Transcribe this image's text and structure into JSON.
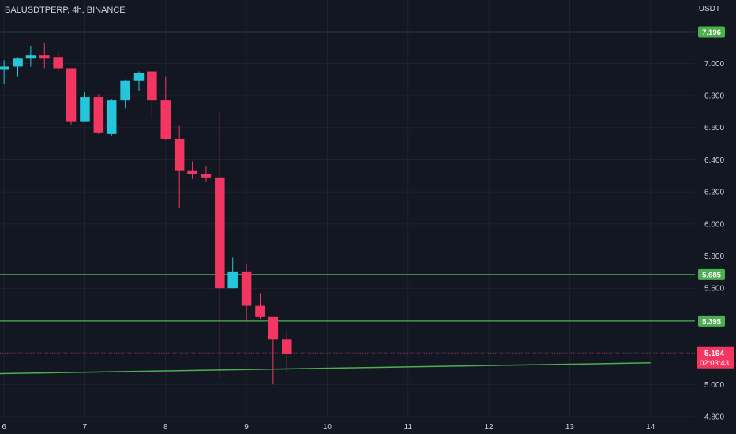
{
  "chart_data": {
    "type": "candlestick",
    "title": "BALUSDTPERP, 4h, BINANCE",
    "y_unit": "USDT",
    "y_ticks": [
      "7.000",
      "6.800",
      "6.600",
      "6.400",
      "6.200",
      "6.000",
      "5.800",
      "5.600",
      "5.400",
      "5.200",
      "5.000",
      "4.800"
    ],
    "y_tick_values": [
      7.0,
      6.8,
      6.6,
      6.4,
      6.2,
      6.0,
      5.8,
      5.6,
      5.4,
      5.2,
      5.0,
      4.8
    ],
    "ylim": [
      4.79,
      7.395
    ],
    "x_ticks": [
      "6",
      "7",
      "8",
      "9",
      "10",
      "11",
      "12",
      "13",
      "14"
    ],
    "x_tick_values": [
      6,
      7,
      8,
      9,
      10,
      11,
      12,
      13,
      14
    ],
    "xlim": [
      5.95,
      14.55
    ],
    "candles": [
      {
        "t": 6.0,
        "o": 6.96,
        "h": 7.02,
        "l": 6.87,
        "c": 6.98
      },
      {
        "t": 6.17,
        "o": 6.98,
        "h": 7.04,
        "l": 6.92,
        "c": 7.03
      },
      {
        "t": 6.33,
        "o": 7.03,
        "h": 7.11,
        "l": 6.98,
        "c": 7.05
      },
      {
        "t": 6.5,
        "o": 7.05,
        "h": 7.13,
        "l": 6.97,
        "c": 7.03
      },
      {
        "t": 6.67,
        "o": 7.04,
        "h": 7.08,
        "l": 6.95,
        "c": 6.97
      },
      {
        "t": 6.83,
        "o": 6.97,
        "h": 6.97,
        "l": 6.62,
        "c": 6.64
      },
      {
        "t": 7.0,
        "o": 6.64,
        "h": 6.82,
        "l": 6.64,
        "c": 6.79
      },
      {
        "t": 7.17,
        "o": 6.79,
        "h": 6.81,
        "l": 6.56,
        "c": 6.57
      },
      {
        "t": 7.33,
        "o": 6.56,
        "h": 6.78,
        "l": 6.55,
        "c": 6.77
      },
      {
        "t": 7.5,
        "o": 6.77,
        "h": 6.9,
        "l": 6.72,
        "c": 6.89
      },
      {
        "t": 7.67,
        "o": 6.89,
        "h": 6.95,
        "l": 6.83,
        "c": 6.94
      },
      {
        "t": 7.83,
        "o": 6.95,
        "h": 6.95,
        "l": 6.66,
        "c": 6.77
      },
      {
        "t": 8.0,
        "o": 6.77,
        "h": 6.92,
        "l": 6.52,
        "c": 6.53
      },
      {
        "t": 8.17,
        "o": 6.53,
        "h": 6.61,
        "l": 6.1,
        "c": 6.33
      },
      {
        "t": 8.33,
        "o": 6.33,
        "h": 6.39,
        "l": 6.28,
        "c": 6.31
      },
      {
        "t": 8.5,
        "o": 6.31,
        "h": 6.36,
        "l": 6.26,
        "c": 6.29
      },
      {
        "t": 8.67,
        "o": 6.29,
        "h": 6.7,
        "l": 5.04,
        "c": 5.6
      },
      {
        "t": 8.83,
        "o": 5.6,
        "h": 5.79,
        "l": 5.6,
        "c": 5.7
      },
      {
        "t": 9.0,
        "o": 5.7,
        "h": 5.75,
        "l": 5.39,
        "c": 5.49
      },
      {
        "t": 9.17,
        "o": 5.49,
        "h": 5.57,
        "l": 5.41,
        "c": 5.42
      },
      {
        "t": 9.33,
        "o": 5.42,
        "h": 5.42,
        "l": 5.0,
        "c": 5.28
      },
      {
        "t": 9.5,
        "o": 5.28,
        "h": 5.33,
        "l": 5.08,
        "c": 5.19
      }
    ],
    "horizontal_levels": [
      {
        "value": 7.196,
        "label": "7.196"
      },
      {
        "value": 5.685,
        "label": "5.685"
      },
      {
        "value": 5.395,
        "label": "5.395"
      }
    ],
    "trendline": {
      "from": {
        "t": 5.95,
        "y": 5.068
      },
      "to": {
        "t": 14.0,
        "y": 5.135
      }
    },
    "last_price": {
      "value": 5.194,
      "label": "5.194",
      "countdown": "02:03:43"
    },
    "colors": {
      "background": "#131722",
      "grid": "#1f2330",
      "up": "#26c6da",
      "down": "#f23661",
      "level": "#4caf50",
      "level_label_bg": "#4caf50",
      "trendline": "#4caf50",
      "text": "#d1d4dc",
      "last_price_bg": "#f23661"
    },
    "grid": true
  }
}
